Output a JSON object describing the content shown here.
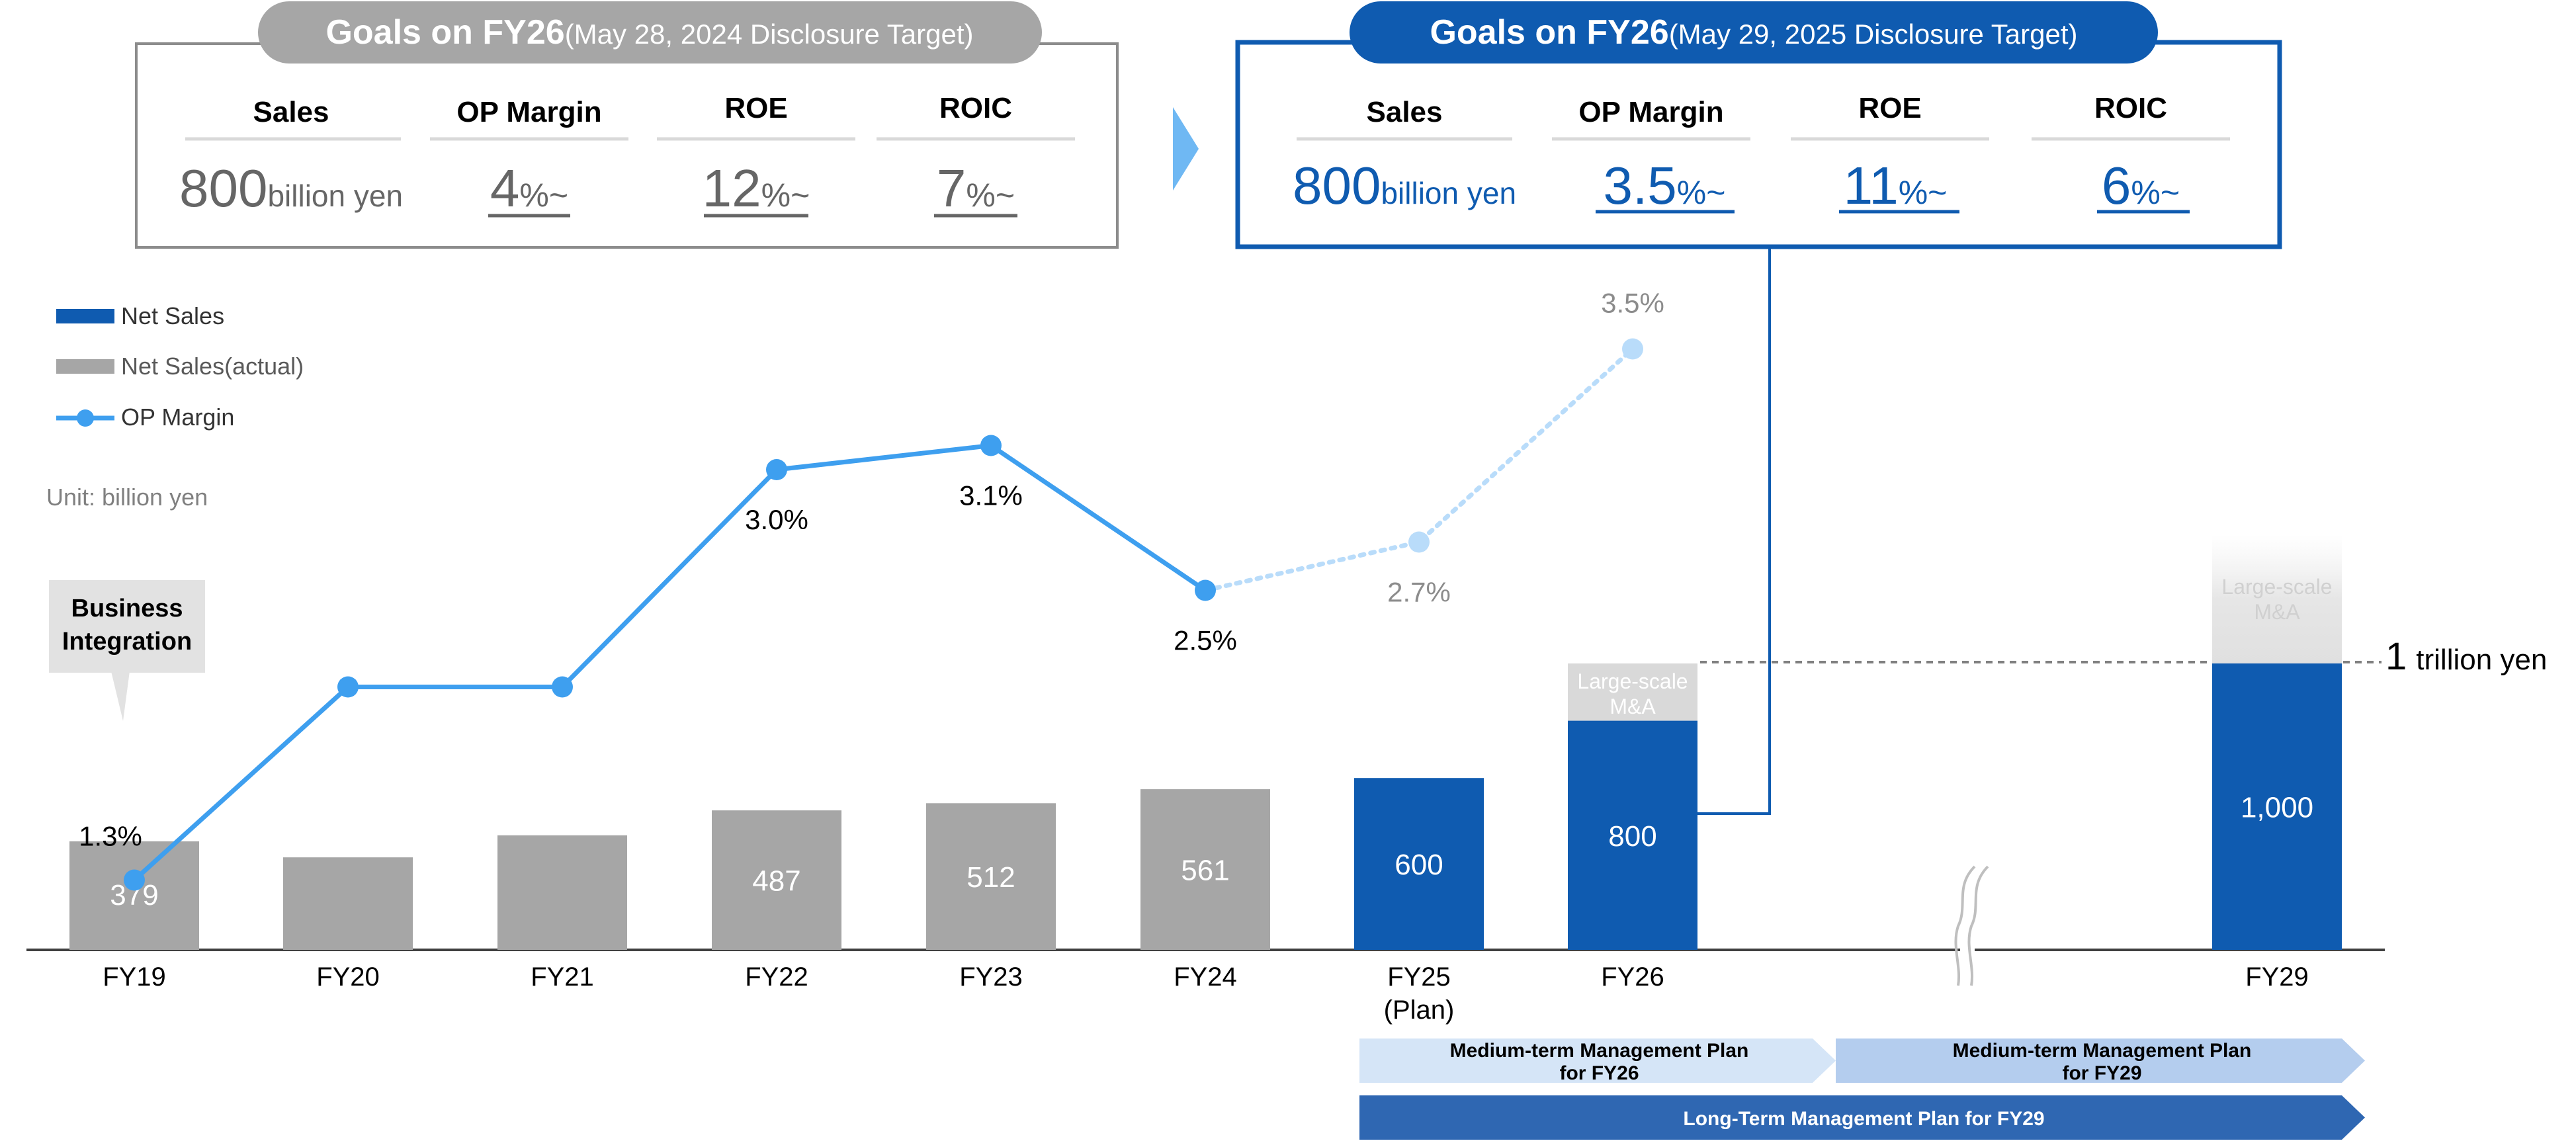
{
  "goals_old": {
    "title_main": "Goals on FY26",
    "title_sub": "(May 28, 2024 Disclosure Target)",
    "metrics": [
      {
        "label": "Sales",
        "value": "800",
        "suffix": "billion yen"
      },
      {
        "label": "OP Margin",
        "value": "4",
        "suffix": "%~"
      },
      {
        "label": "ROE",
        "value": "12",
        "suffix": "%~"
      },
      {
        "label": "ROIC",
        "value": "7",
        "suffix": "%~"
      }
    ]
  },
  "goals_new": {
    "title_main": "Goals on FY26",
    "title_sub": "(May 29, 2025 Disclosure Target)",
    "metrics": [
      {
        "label": "Sales",
        "value": "800",
        "suffix": "billion yen"
      },
      {
        "label": "OP Margin",
        "value": "3.5",
        "suffix": "%~"
      },
      {
        "label": "ROE",
        "value": "11",
        "suffix": "%~"
      },
      {
        "label": "ROIC",
        "value": "6",
        "suffix": "%~"
      }
    ]
  },
  "legend": {
    "net_sales": "Net Sales",
    "net_sales_actual": "Net Sales(actual)",
    "op_margin": "OP Margin"
  },
  "unit_label": "Unit: billion yen",
  "callout": {
    "line1": "Business",
    "line2": "Integration"
  },
  "target": {
    "value": "1",
    "label": "trillion yen"
  },
  "mna_label": {
    "line1": "Large-scale",
    "line2": "M&A"
  },
  "colors": {
    "actual": "#a6a6a6",
    "plan": "#0f5bb0",
    "line": "#3e9fef",
    "line_future": "#b9dcfa",
    "mna": "#d9d9d9",
    "old_badge": "#a6a6a6",
    "new_badge": "#0f5bb0",
    "arrow": "#6fb8f3",
    "band_light1": "#d5e5f7",
    "band_light2": "#b4cdee",
    "band_dark": "#2f67b2"
  },
  "chart_data": {
    "type": "bar",
    "categories": [
      "FY19",
      "FY20",
      "FY21",
      "FY22",
      "FY23",
      "FY24",
      "FY25",
      "FY26",
      "FY29"
    ],
    "category_sublabels": {
      "FY25": "(Plan)"
    },
    "series": [
      {
        "name": "Net Sales(actual)",
        "type": "bar",
        "values": [
          379,
          323,
          400,
          487,
          512,
          561,
          null,
          null,
          null
        ],
        "labels": [
          "379",
          "",
          "",
          "487",
          "512",
          "561",
          "",
          "",
          ""
        ]
      },
      {
        "name": "Net Sales",
        "type": "bar",
        "values": [
          null,
          null,
          null,
          null,
          null,
          null,
          600,
          800,
          1000
        ],
        "labels": [
          "",
          "",
          "",
          "",
          "",
          "",
          "600",
          "800",
          "1,000"
        ]
      },
      {
        "name": "OP Margin",
        "type": "line",
        "values": [
          1.3,
          2.1,
          2.1,
          3.0,
          3.1,
          2.5,
          2.7,
          3.5,
          null
        ],
        "labels": [
          "1.3%",
          "",
          "",
          "3.0%",
          "3.1%",
          "2.5%",
          "2.7%",
          "3.5%",
          ""
        ],
        "forecast_from": "FY24"
      }
    ],
    "mna_extension": {
      "FY26": 1000,
      "FY29": 1450
    },
    "plans": [
      {
        "line1": "Medium-term Management Plan",
        "line2": "for FY26"
      },
      {
        "line1": "Medium-term Management Plan",
        "line2": "for FY29"
      },
      {
        "line1": "Long-Term Management Plan for FY29",
        "line2": ""
      }
    ]
  }
}
